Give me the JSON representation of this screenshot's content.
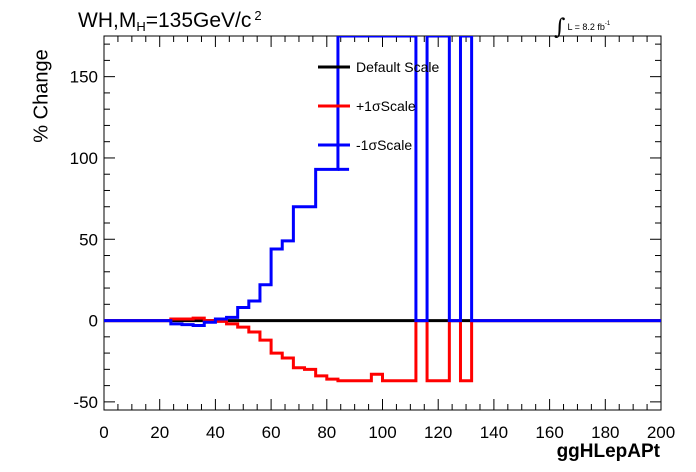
{
  "title": {
    "process": "WH,M",
    "subscript": "H",
    "mass": "=135GeV/c",
    "superscript": "2"
  },
  "lumi": {
    "symbol": "∫",
    "text": "L = 8.2 fb",
    "exponent": "-1"
  },
  "chart_data": {
    "type": "line",
    "xlabel": "ggHLepAPt",
    "ylabel": "% Change",
    "xlim": [
      0,
      200
    ],
    "ylim": [
      -55,
      175
    ],
    "x_ticks": [
      "0",
      "20",
      "40",
      "60",
      "80",
      "100",
      "120",
      "140",
      "160",
      "180",
      "200"
    ],
    "y_ticks": [
      "-50",
      "0",
      "50",
      "100",
      "150"
    ],
    "legend_position": "top-center",
    "series": [
      {
        "name": "Default Scale",
        "color": "#000000",
        "bin_edges": [
          0,
          200
        ],
        "values": [
          0
        ]
      },
      {
        "name": "+1σScale",
        "color": "#ff0000",
        "bin_edges": [
          0,
          24,
          28,
          32,
          36,
          40,
          44,
          48,
          52,
          56,
          60,
          64,
          68,
          72,
          76,
          80,
          84,
          96,
          100,
          112,
          116,
          124,
          128,
          132,
          200
        ],
        "values": [
          0,
          1,
          1,
          1.5,
          0,
          -0.5,
          -2,
          -4,
          -7,
          -12,
          -20,
          -23,
          -29,
          -30,
          -34,
          -36,
          -37,
          -33,
          -37,
          0,
          -37,
          0,
          -37,
          0
        ]
      },
      {
        "name": "-1σScale",
        "color": "#0000ff",
        "bin_edges": [
          0,
          24,
          28,
          32,
          36,
          40,
          44,
          48,
          52,
          56,
          60,
          64,
          68,
          76,
          80,
          84,
          112,
          116,
          124,
          128,
          132,
          200
        ],
        "values": [
          0,
          -2,
          -2.5,
          -3,
          -1,
          1,
          2,
          8,
          12,
          22,
          44,
          49,
          70,
          93,
          93,
          175,
          0,
          175,
          0,
          175,
          0
        ],
        "note_visible_stub": "84-88: 93"
      }
    ]
  }
}
